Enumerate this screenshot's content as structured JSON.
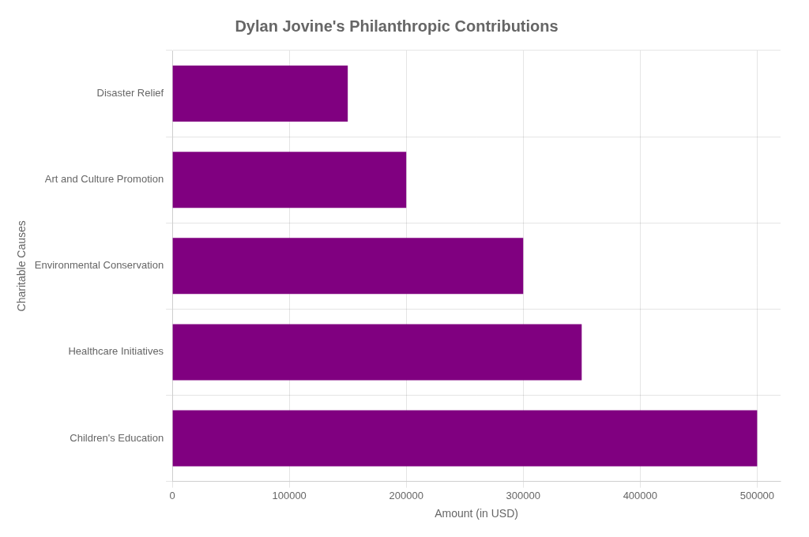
{
  "chart_data": {
    "type": "bar",
    "orientation": "horizontal",
    "title": "Dylan Jovine's Philanthropic Contributions",
    "xlabel": "Amount (in USD)",
    "ylabel": "Charitable Causes",
    "categories": [
      "Children's Education",
      "Healthcare Initiatives",
      "Environmental Conservation",
      "Art and Culture Promotion",
      "Disaster Relief"
    ],
    "values": [
      500000,
      350000,
      300000,
      200000,
      150000
    ],
    "color": "#800080",
    "xlim": [
      0,
      520000
    ],
    "xticks": [
      0,
      100000,
      200000,
      300000,
      400000,
      500000
    ],
    "grid": true
  }
}
